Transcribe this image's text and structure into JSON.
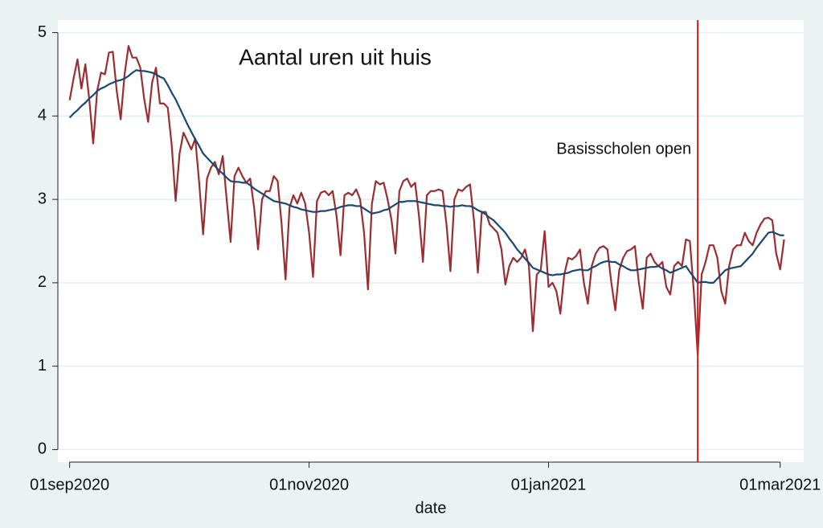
{
  "chart_data": {
    "type": "line",
    "title": "Aantal uren uit huis",
    "xlabel": "date",
    "x": [
      "2020-09-01",
      "2020-09-02",
      "2020-09-03",
      "2020-09-04",
      "2020-09-05",
      "2020-09-06",
      "2020-09-07",
      "2020-09-08",
      "2020-09-09",
      "2020-09-10",
      "2020-09-11",
      "2020-09-12",
      "2020-09-13",
      "2020-09-14",
      "2020-09-15",
      "2020-09-16",
      "2020-09-17",
      "2020-09-18",
      "2020-09-19",
      "2020-09-20",
      "2020-09-21",
      "2020-09-22",
      "2020-09-23",
      "2020-09-24",
      "2020-09-25",
      "2020-09-26",
      "2020-09-27",
      "2020-09-28",
      "2020-09-29",
      "2020-09-30",
      "2020-10-01",
      "2020-10-02",
      "2020-10-03",
      "2020-10-04",
      "2020-10-05",
      "2020-10-06",
      "2020-10-07",
      "2020-10-08",
      "2020-10-09",
      "2020-10-10",
      "2020-10-11",
      "2020-10-12",
      "2020-10-13",
      "2020-10-14",
      "2020-10-15",
      "2020-10-16",
      "2020-10-17",
      "2020-10-18",
      "2020-10-19",
      "2020-10-20",
      "2020-10-21",
      "2020-10-22",
      "2020-10-23",
      "2020-10-24",
      "2020-10-25",
      "2020-10-26",
      "2020-10-27",
      "2020-10-28",
      "2020-10-29",
      "2020-10-30",
      "2020-10-31",
      "2020-11-01",
      "2020-11-02",
      "2020-11-03",
      "2020-11-04",
      "2020-11-05",
      "2020-11-06",
      "2020-11-07",
      "2020-11-08",
      "2020-11-09",
      "2020-11-10",
      "2020-11-11",
      "2020-11-12",
      "2020-11-13",
      "2020-11-14",
      "2020-11-15",
      "2020-11-16",
      "2020-11-17",
      "2020-11-18",
      "2020-11-19",
      "2020-11-20",
      "2020-11-21",
      "2020-11-22",
      "2020-11-23",
      "2020-11-24",
      "2020-11-25",
      "2020-11-26",
      "2020-11-27",
      "2020-11-28",
      "2020-11-29",
      "2020-11-30",
      "2020-12-01",
      "2020-12-02",
      "2020-12-03",
      "2020-12-04",
      "2020-12-05",
      "2020-12-06",
      "2020-12-07",
      "2020-12-08",
      "2020-12-09",
      "2020-12-10",
      "2020-12-11",
      "2020-12-12",
      "2020-12-13",
      "2020-12-14",
      "2020-12-15",
      "2020-12-16",
      "2020-12-17",
      "2020-12-18",
      "2020-12-19",
      "2020-12-20",
      "2020-12-21",
      "2020-12-22",
      "2020-12-23",
      "2020-12-24",
      "2020-12-25",
      "2020-12-26",
      "2020-12-27",
      "2020-12-28",
      "2020-12-29",
      "2020-12-30",
      "2020-12-31",
      "2021-01-01",
      "2021-01-02",
      "2021-01-03",
      "2021-01-04",
      "2021-01-05",
      "2021-01-06",
      "2021-01-07",
      "2021-01-08",
      "2021-01-09",
      "2021-01-10",
      "2021-01-11",
      "2021-01-12",
      "2021-01-13",
      "2021-01-14",
      "2021-01-15",
      "2021-01-16",
      "2021-01-17",
      "2021-01-18",
      "2021-01-19",
      "2021-01-20",
      "2021-01-21",
      "2021-01-22",
      "2021-01-23",
      "2021-01-24",
      "2021-01-25",
      "2021-01-26",
      "2021-01-27",
      "2021-01-28",
      "2021-01-29",
      "2021-01-30",
      "2021-01-31",
      "2021-02-01",
      "2021-02-02",
      "2021-02-03",
      "2021-02-04",
      "2021-02-05",
      "2021-02-06",
      "2021-02-07",
      "2021-02-08",
      "2021-02-09",
      "2021-02-10",
      "2021-02-11",
      "2021-02-12",
      "2021-02-13",
      "2021-02-14",
      "2021-02-15",
      "2021-02-16",
      "2021-02-17",
      "2021-02-18",
      "2021-02-19",
      "2021-02-20",
      "2021-02-21",
      "2021-02-22",
      "2021-02-23",
      "2021-02-24",
      "2021-02-25",
      "2021-02-26",
      "2021-02-27",
      "2021-02-28",
      "2021-03-01",
      "2021-03-02"
    ],
    "series": [
      {
        "color": "#9b2d30",
        "values": [
          4.19,
          4.45,
          4.68,
          4.33,
          4.62,
          4.2,
          3.67,
          4.3,
          4.52,
          4.5,
          4.76,
          4.77,
          4.3,
          3.96,
          4.5,
          4.84,
          4.7,
          4.7,
          4.58,
          4.2,
          3.93,
          4.4,
          4.58,
          4.15,
          4.15,
          4.1,
          3.65,
          2.98,
          3.55,
          3.8,
          3.7,
          3.6,
          3.73,
          3.2,
          2.58,
          3.25,
          3.38,
          3.45,
          3.3,
          3.52,
          3.0,
          2.49,
          3.28,
          3.38,
          3.28,
          3.2,
          3.25,
          2.9,
          2.4,
          3.0,
          3.1,
          3.1,
          3.28,
          3.22,
          2.7,
          2.04,
          2.9,
          3.05,
          2.95,
          3.08,
          2.95,
          2.6,
          2.07,
          2.98,
          3.08,
          3.1,
          3.05,
          3.1,
          2.8,
          2.33,
          3.05,
          3.08,
          3.05,
          3.12,
          3.0,
          2.6,
          1.92,
          2.95,
          3.22,
          3.18,
          3.2,
          3.0,
          2.75,
          2.35,
          3.1,
          3.22,
          3.25,
          3.15,
          3.2,
          2.8,
          2.25,
          3.05,
          3.1,
          3.1,
          3.12,
          3.1,
          2.7,
          2.14,
          3.0,
          3.12,
          3.1,
          3.15,
          3.18,
          2.75,
          2.12,
          2.85,
          2.85,
          2.7,
          2.65,
          2.6,
          2.4,
          1.98,
          2.2,
          2.3,
          2.25,
          2.3,
          2.4,
          2.2,
          1.42,
          2.1,
          2.15,
          2.62,
          1.95,
          2.0,
          1.9,
          1.63,
          2.1,
          2.3,
          2.28,
          2.32,
          2.4,
          2.0,
          1.75,
          2.2,
          2.35,
          2.42,
          2.44,
          2.4,
          2.0,
          1.67,
          2.15,
          2.3,
          2.38,
          2.4,
          2.44,
          2.0,
          1.69,
          2.3,
          2.35,
          2.25,
          2.2,
          2.25,
          1.95,
          1.86,
          2.2,
          2.25,
          2.2,
          2.52,
          2.5,
          1.9,
          1.14,
          2.1,
          2.25,
          2.45,
          2.45,
          2.3,
          1.9,
          1.75,
          2.2,
          2.4,
          2.45,
          2.45,
          2.6,
          2.5,
          2.45,
          2.6,
          2.7,
          2.77,
          2.78,
          2.75,
          2.35,
          2.16,
          2.52
        ]
      },
      {
        "color": "#1a476f",
        "values": [
          3.98,
          4.03,
          4.07,
          4.12,
          4.16,
          4.21,
          4.25,
          4.3,
          4.33,
          4.35,
          4.38,
          4.4,
          4.42,
          4.43,
          4.45,
          4.48,
          4.52,
          4.55,
          4.54,
          4.54,
          4.53,
          4.52,
          4.5,
          4.47,
          4.45,
          4.37,
          4.28,
          4.2,
          4.1,
          4.0,
          3.9,
          3.81,
          3.72,
          3.64,
          3.55,
          3.5,
          3.45,
          3.4,
          3.35,
          3.31,
          3.26,
          3.22,
          3.21,
          3.21,
          3.2,
          3.2,
          3.17,
          3.13,
          3.1,
          3.07,
          3.04,
          3.01,
          2.98,
          2.97,
          2.96,
          2.95,
          2.93,
          2.91,
          2.9,
          2.88,
          2.87,
          2.86,
          2.85,
          2.85,
          2.86,
          2.86,
          2.87,
          2.88,
          2.89,
          2.91,
          2.92,
          2.93,
          2.93,
          2.92,
          2.92,
          2.89,
          2.86,
          2.83,
          2.84,
          2.85,
          2.87,
          2.88,
          2.91,
          2.94,
          2.97,
          2.97,
          2.98,
          2.98,
          2.98,
          2.97,
          2.96,
          2.95,
          2.94,
          2.93,
          2.93,
          2.92,
          2.92,
          2.91,
          2.92,
          2.92,
          2.93,
          2.92,
          2.92,
          2.9,
          2.87,
          2.85,
          2.82,
          2.78,
          2.75,
          2.7,
          2.65,
          2.6,
          2.53,
          2.47,
          2.4,
          2.35,
          2.29,
          2.24,
          2.18,
          2.16,
          2.14,
          2.12,
          2.1,
          2.09,
          2.1,
          2.1,
          2.11,
          2.12,
          2.14,
          2.15,
          2.16,
          2.15,
          2.15,
          2.18,
          2.2,
          2.23,
          2.25,
          2.26,
          2.25,
          2.25,
          2.22,
          2.2,
          2.17,
          2.15,
          2.15,
          2.16,
          2.17,
          2.18,
          2.19,
          2.19,
          2.2,
          2.17,
          2.15,
          2.12,
          2.14,
          2.16,
          2.18,
          2.2,
          2.13,
          2.07,
          2.0,
          2.01,
          2.01,
          2.0,
          2.0,
          2.05,
          2.1,
          2.15,
          2.17,
          2.18,
          2.19,
          2.2,
          2.25,
          2.3,
          2.35,
          2.42,
          2.48,
          2.54,
          2.6,
          2.61,
          2.59,
          2.57,
          2.57
        ]
      }
    ],
    "xlim": [
      "2020-08-29",
      "2021-03-07"
    ],
    "xticks": [
      {
        "value": "2020-09-01",
        "label": "01sep2020"
      },
      {
        "value": "2020-11-01",
        "label": "01nov2020"
      },
      {
        "value": "2021-01-01",
        "label": "01jan2021"
      },
      {
        "value": "2021-03-01",
        "label": "01mar2021"
      }
    ],
    "ylim": [
      -0.15,
      5.15
    ],
    "yticks": [
      0,
      1,
      2,
      3,
      4,
      5
    ],
    "grid": true,
    "vline": {
      "x": "2021-02-08",
      "color": "#cc1f1f",
      "label": "Basisscholen open"
    }
  }
}
